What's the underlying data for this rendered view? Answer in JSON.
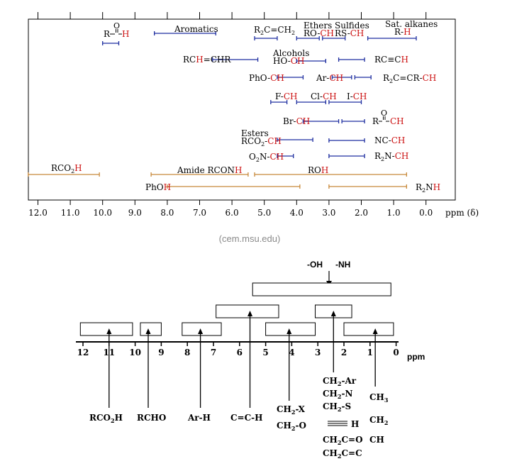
{
  "top_chart": {
    "ticks": [
      "12.0",
      "11.0",
      "10.0",
      "9.0",
      "8.0",
      "7.0",
      "6.0",
      "5.0",
      "4.0",
      "3.0",
      "2.0",
      "1.0",
      "0.0"
    ],
    "axis_unit": "ppm (δ)",
    "colors": {
      "blue": "#1f2fa0",
      "orange": "#c8893a",
      "red": "#cc1111",
      "frame": "#000000"
    },
    "ranges": [
      {
        "id": "aldehyde",
        "label": "R-C(=O)H",
        "from": 10.0,
        "to": 9.5,
        "color": "blue"
      },
      {
        "id": "aromatics",
        "label": "Aromatics",
        "from": 8.4,
        "to": 6.5,
        "color": "blue"
      },
      {
        "id": "alkene",
        "label": "R2C=CH2",
        "from": 5.3,
        "to": 4.6,
        "color": "blue"
      },
      {
        "id": "ethers",
        "label": "RO-CH",
        "from": 4.0,
        "to": 3.3,
        "color": "blue"
      },
      {
        "id": "sulfides",
        "label": "RS-CH",
        "from": 3.2,
        "to": 2.5,
        "color": "blue"
      },
      {
        "id": "sat_alkanes",
        "label": "R-H",
        "from": 1.8,
        "to": 0.3,
        "color": "blue"
      },
      {
        "id": "rchchr",
        "label": "RCH=CHR",
        "from": 6.6,
        "to": 5.2,
        "color": "blue"
      },
      {
        "id": "alcohols",
        "label": "HO-CH",
        "from": 4.0,
        "to": 3.1,
        "color": "blue"
      },
      {
        "id": "alkyne",
        "label": "RC≡CH",
        "from": 2.7,
        "to": 1.9,
        "color": "blue"
      },
      {
        "id": "phenylether",
        "label": "PhO-CH",
        "from": 4.6,
        "to": 3.8,
        "color": "blue"
      },
      {
        "id": "arylalkyl",
        "label": "Ar-CH",
        "from": 2.9,
        "to": 2.3,
        "color": "blue"
      },
      {
        "id": "allylic",
        "label": "R2C=CR-CH",
        "from": 2.2,
        "to": 1.7,
        "color": "blue"
      },
      {
        "id": "fluoro",
        "label": "F-CH",
        "from": 4.8,
        "to": 4.3,
        "color": "blue"
      },
      {
        "id": "chloro",
        "label": "Cl-CH",
        "from": 4.0,
        "to": 3.1,
        "color": "blue"
      },
      {
        "id": "iodo",
        "label": "I-CH",
        "from": 3.0,
        "to": 2.0,
        "color": "blue"
      },
      {
        "id": "bromo",
        "label": "Br-CH",
        "from": 3.8,
        "to": 2.7,
        "color": "blue"
      },
      {
        "id": "ketone",
        "label": "R-C(=O)-CH",
        "from": 2.6,
        "to": 1.9,
        "color": "blue"
      },
      {
        "id": "esters",
        "label": "RCO2-CH",
        "from": 4.6,
        "to": 3.5,
        "color": "blue"
      },
      {
        "id": "nitrile",
        "label": "NC-CH",
        "from": 3.0,
        "to": 1.9,
        "color": "blue"
      },
      {
        "id": "nitro",
        "label": "O2N-CH",
        "from": 4.6,
        "to": 4.1,
        "color": "blue"
      },
      {
        "id": "amine",
        "label": "R2N-CH",
        "from": 3.0,
        "to": 1.9,
        "color": "blue"
      },
      {
        "id": "acid",
        "label": "RCO2H",
        "from": 12.3,
        "to": 10.1,
        "color": "orange"
      },
      {
        "id": "amide",
        "label": "Amide RCONH",
        "from": 8.5,
        "to": 5.5,
        "color": "orange"
      },
      {
        "id": "roh",
        "label": "ROH",
        "from": 5.3,
        "to": 0.6,
        "color": "orange"
      },
      {
        "id": "phoh",
        "label": "PhOH",
        "from": 8.0,
        "to": 3.9,
        "color": "orange"
      },
      {
        "id": "r2nh",
        "label": "R2NH",
        "from": 3.0,
        "to": 0.6,
        "color": "orange"
      }
    ]
  },
  "credit": "(cem.msu.edu)",
  "bottom_chart": {
    "ticks": [
      "12",
      "11",
      "10",
      "9",
      "8",
      "7",
      "6",
      "5",
      "4",
      "3",
      "2",
      "1",
      "0"
    ],
    "unit": "ppm",
    "top_labels": [
      "-OH",
      "-NH"
    ],
    "boxes": [
      {
        "id": "exchangeable",
        "from": 5.5,
        "to": 0.2,
        "row": 3
      },
      {
        "id": "alkene",
        "from": 6.9,
        "to": 4.5,
        "row": 2
      },
      {
        "id": "hetero_alpha",
        "from": 3.1,
        "to": 1.7,
        "row": 2
      },
      {
        "id": "acid",
        "from": 12.1,
        "to": 10.1,
        "row": 1
      },
      {
        "id": "aldehyde",
        "from": 9.8,
        "to": 9.0,
        "row": 1
      },
      {
        "id": "aromatic",
        "from": 8.2,
        "to": 6.7,
        "row": 1
      },
      {
        "id": "x_o",
        "from": 5.0,
        "to": 3.1,
        "row": 1
      },
      {
        "id": "alkyl",
        "from": 2.0,
        "to": 0.1,
        "row": 1
      }
    ],
    "markers": [
      {
        "id": "acid",
        "ppm": 11.0,
        "label": "RCO2H"
      },
      {
        "id": "aldehyde",
        "ppm": 9.5,
        "label": "RCHO"
      },
      {
        "id": "aromatic",
        "ppm": 7.5,
        "label": "Ar-H"
      },
      {
        "id": "alkene",
        "ppm": 5.6,
        "label": "C=C-H"
      },
      {
        "id": "x_o",
        "ppm": 4.1,
        "label": "CH2-X / CH2-O"
      },
      {
        "id": "hetero_alpha",
        "ppm": 2.4,
        "label": "CH2-Ar, CH2-N, CH2-S, ≡C-H, CH2C=O, CH2C=C"
      },
      {
        "id": "alkyl",
        "ppm": 0.8,
        "label": "CH3, CH2, CH"
      }
    ]
  }
}
